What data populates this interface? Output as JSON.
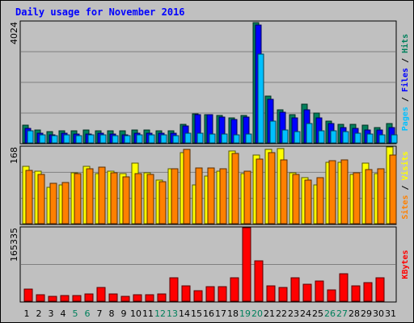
{
  "title": "Daily usage for November 2016",
  "colors": {
    "hits": "#00805c",
    "files": "#0000ff",
    "pages": "#00c0ff",
    "visits": "#ffff00",
    "sites": "#ff8000",
    "kbytes": "#ff0000",
    "panel_bg": "#c0c0c0",
    "grid": "#808080",
    "weekend": "#00805c",
    "weekday": "#000000"
  },
  "chart_data": [
    {
      "type": "bar",
      "panel": "hits-files-pages",
      "ylabel_parts": [
        "Pages",
        "Files",
        "Hits"
      ],
      "ymax_label": "4024",
      "ylim": [
        0,
        4024
      ],
      "categories": [
        "1",
        "2",
        "3",
        "4",
        "5",
        "6",
        "7",
        "8",
        "9",
        "10",
        "11",
        "12",
        "13",
        "14",
        "15",
        "16",
        "17",
        "18",
        "19",
        "20",
        "21",
        "22",
        "23",
        "24",
        "25",
        "26",
        "27",
        "28",
        "29",
        "30",
        "31"
      ],
      "series": [
        {
          "name": "Hits",
          "values": [
            600,
            420,
            370,
            390,
            390,
            420,
            410,
            390,
            390,
            430,
            420,
            400,
            410,
            620,
            960,
            950,
            900,
            840,
            910,
            4000,
            1560,
            1100,
            940,
            1280,
            980,
            730,
            620,
            620,
            580,
            520,
            640
          ]
        },
        {
          "name": "Files",
          "values": [
            480,
            330,
            280,
            310,
            290,
            300,
            330,
            290,
            280,
            330,
            320,
            320,
            320,
            550,
            930,
            930,
            850,
            780,
            850,
            3910,
            1450,
            1010,
            820,
            1100,
            830,
            640,
            520,
            480,
            440,
            430,
            520
          ]
        },
        {
          "name": "Pages",
          "values": [
            400,
            270,
            230,
            260,
            250,
            260,
            270,
            240,
            230,
            260,
            260,
            260,
            250,
            330,
            330,
            300,
            290,
            280,
            300,
            2960,
            720,
            420,
            380,
            640,
            400,
            390,
            370,
            330,
            290,
            270,
            260
          ]
        }
      ]
    },
    {
      "type": "bar",
      "panel": "sites-visits",
      "ylabel_parts": [
        "Sites",
        "Visits"
      ],
      "ymax_label": "168",
      "ylim": [
        0,
        168
      ],
      "categories": [
        "1",
        "2",
        "3",
        "4",
        "5",
        "6",
        "7",
        "8",
        "9",
        "10",
        "11",
        "12",
        "13",
        "14",
        "15",
        "16",
        "17",
        "18",
        "19",
        "20",
        "21",
        "22",
        "23",
        "24",
        "25",
        "26",
        "27",
        "28",
        "29",
        "30",
        "31"
      ],
      "series": [
        {
          "name": "Visits",
          "values": [
            125,
            115,
            80,
            85,
            112,
            125,
            110,
            115,
            110,
            132,
            112,
            95,
            120,
            155,
            85,
            105,
            115,
            160,
            110,
            150,
            162,
            165,
            112,
            100,
            85,
            135,
            135,
            108,
            132,
            110,
            168
          ]
        },
        {
          "name": "Sites",
          "values": [
            116,
            108,
            88,
            90,
            110,
            120,
            124,
            112,
            102,
            110,
            108,
            92,
            120,
            163,
            122,
            122,
            120,
            153,
            115,
            142,
            155,
            140,
            107,
            95,
            100,
            138,
            140,
            112,
            118,
            120,
            150
          ]
        }
      ]
    },
    {
      "type": "bar",
      "panel": "kbytes",
      "ylabel_parts": [
        "KBytes"
      ],
      "ymax_label": "165335",
      "ylim": [
        0,
        165335
      ],
      "categories": [
        "1",
        "2",
        "3",
        "4",
        "5",
        "6",
        "7",
        "8",
        "9",
        "10",
        "11",
        "12",
        "13",
        "14",
        "15",
        "16",
        "17",
        "18",
        "19",
        "20",
        "21",
        "22",
        "23",
        "24",
        "25",
        "26",
        "27",
        "28",
        "29",
        "30",
        "31"
      ],
      "series": [
        {
          "name": "KBytes",
          "values": [
            28000,
            15000,
            10000,
            12000,
            13000,
            17000,
            30000,
            17000,
            11000,
            14000,
            15000,
            17000,
            52000,
            35000,
            24000,
            33000,
            32000,
            52000,
            165000,
            90000,
            34000,
            30000,
            52000,
            38000,
            45000,
            25000,
            62000,
            35000,
            42000,
            52000,
            0
          ]
        }
      ]
    }
  ],
  "day_labels": [
    "1",
    "2",
    "3",
    "4",
    "5",
    "6",
    "7",
    "8",
    "9",
    "10",
    "11",
    "12",
    "13",
    "14",
    "15",
    "16",
    "17",
    "18",
    "19",
    "20",
    "21",
    "22",
    "23",
    "24",
    "25",
    "26",
    "27",
    "28",
    "29",
    "30",
    "31"
  ],
  "weekend_days": [
    5,
    6,
    12,
    13,
    19,
    20,
    26,
    27
  ]
}
